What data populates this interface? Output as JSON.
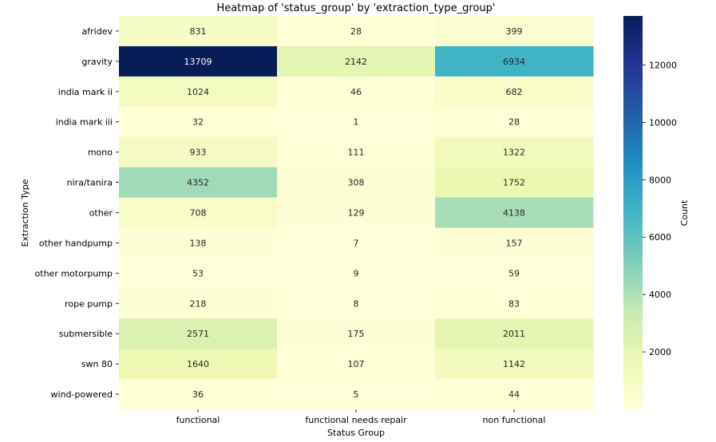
{
  "chart_data": {
    "type": "heatmap",
    "title": "Heatmap of 'status_group' by 'extraction_type_group'",
    "xlabel": "Status Group",
    "ylabel": "Extraction Type",
    "colorbar_label": "Count",
    "colormap": "YlGnBu",
    "value_range": [
      1,
      13709
    ],
    "colorbar_ticks": [
      2000,
      4000,
      6000,
      8000,
      10000,
      12000
    ],
    "columns": [
      "functional",
      "functional needs repair",
      "non functional"
    ],
    "rows": [
      "afridev",
      "gravity",
      "india mark ii",
      "india mark iii",
      "mono",
      "nira/tanira",
      "other",
      "other handpump",
      "other motorpump",
      "rope pump",
      "submersible",
      "swn 80",
      "wind-powered"
    ],
    "values": [
      [
        831,
        28,
        399
      ],
      [
        13709,
        2142,
        6934
      ],
      [
        1024,
        46,
        682
      ],
      [
        32,
        1,
        28
      ],
      [
        933,
        111,
        1322
      ],
      [
        4352,
        308,
        1752
      ],
      [
        708,
        129,
        4138
      ],
      [
        138,
        7,
        157
      ],
      [
        53,
        9,
        59
      ],
      [
        218,
        8,
        83
      ],
      [
        2571,
        175,
        2011
      ],
      [
        1640,
        107,
        1142
      ],
      [
        36,
        5,
        44
      ]
    ]
  }
}
